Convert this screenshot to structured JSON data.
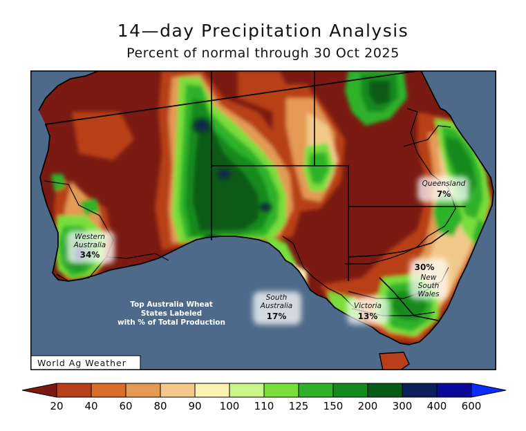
{
  "title": "14—day Precipitation Analysis",
  "subtitle": "Percent of normal through 30 Oct 2025",
  "credit": "World Ag Weather",
  "info_note": [
    "Top Australia Wheat",
    "States Labeled",
    "with % of Total Production"
  ],
  "states": [
    {
      "name": "western-australia",
      "lines": [
        "Western",
        "Australia"
      ],
      "pct": "34%"
    },
    {
      "name": "south-australia",
      "lines": [
        "South",
        "Australia"
      ],
      "pct": "17%"
    },
    {
      "name": "queensland",
      "lines": [
        "Queensland"
      ],
      "pct": "7%"
    },
    {
      "name": "new-south-wales",
      "lines": [
        "New",
        "South",
        "Wales"
      ],
      "pct": "30%"
    },
    {
      "name": "victoria",
      "lines": [
        "Victoria"
      ],
      "pct": "13%"
    }
  ],
  "legend": {
    "ticks": [
      "20",
      "40",
      "60",
      "80",
      "90",
      "100",
      "110",
      "125",
      "150",
      "200",
      "300",
      "400",
      "600"
    ],
    "colors": [
      "#7a1a12",
      "#b83f19",
      "#d86d2a",
      "#e49a55",
      "#f2c98a",
      "#fbf1b0",
      "#caf58a",
      "#78de3a",
      "#2fb22a",
      "#148a1f",
      "#0a5a17",
      "#0a1f5c",
      "#0a0a9a",
      "#0b2cff"
    ]
  },
  "colors": {
    "ocean": "#4d6a8a",
    "land_dry": "#7a1a12",
    "wet": "#148a1f"
  }
}
